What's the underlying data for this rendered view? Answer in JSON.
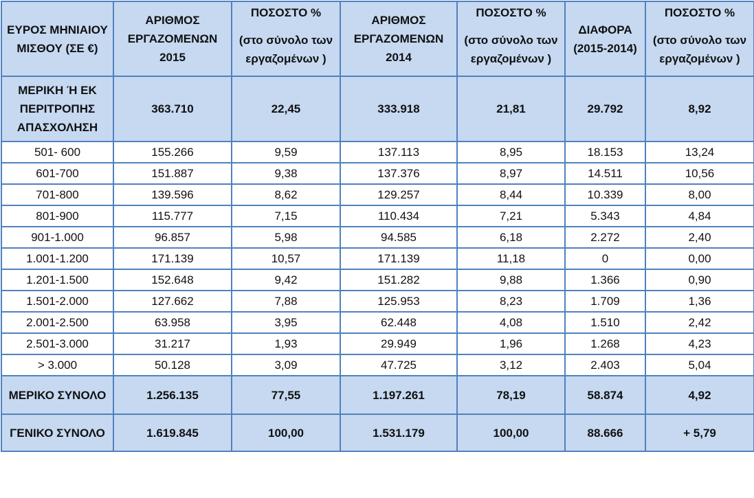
{
  "table": {
    "columns": [
      {
        "label": "ΕΥΡΟΣ ΜΗΝΙΑΙΟΥ ΜΙΣΘΟΥ (ΣΕ €)"
      },
      {
        "label": "ΑΡΙΘΜΟΣ ΕΡΓΑΖΟΜΕΝΩΝ 2015"
      },
      {
        "label": "ΠΟΣΟΣΤΟ %",
        "note": "(στο σύνολο των εργαζομένων )"
      },
      {
        "label": "ΑΡΙΘΜΟΣ ΕΡΓΑΖΟΜΕΝΩΝ 2014"
      },
      {
        "label": "ΠΟΣΟΣΤΟ %",
        "note": "(στο σύνολο των εργαζομένων )"
      },
      {
        "label": "ΔΙΑΦΟΡΑ (2015-2014)"
      },
      {
        "label": "ΠΟΣΟΣΤΟ %",
        "note": "(στο σύνολο των εργαζομένων )"
      }
    ],
    "rows": [
      [
        "ΜΕΡΙΚΗ Ή ΕΚ ΠΕΡΙΤΡΟΠΗΣ ΑΠΑΣΧΟΛΗΣΗ",
        "363.710",
        "22,45",
        "333.918",
        "21,81",
        "29.792",
        "8,92"
      ],
      [
        "501- 600",
        "155.266",
        "9,59",
        "137.113",
        "8,95",
        "18.153",
        "13,24"
      ],
      [
        "601-700",
        "151.887",
        "9,38",
        "137.376",
        "8,97",
        "14.511",
        "10,56"
      ],
      [
        "701-800",
        "139.596",
        "8,62",
        "129.257",
        "8,44",
        "10.339",
        "8,00"
      ],
      [
        "801-900",
        "115.777",
        "7,15",
        "110.434",
        "7,21",
        "5.343",
        "4,84"
      ],
      [
        "901-1.000",
        "96.857",
        "5,98",
        "94.585",
        "6,18",
        "2.272",
        "2,40"
      ],
      [
        "1.001-1.200",
        "171.139",
        "10,57",
        "171.139",
        "11,18",
        "0",
        "0,00"
      ],
      [
        "1.201-1.500",
        "152.648",
        "9,42",
        "151.282",
        "9,88",
        "1.366",
        "0,90"
      ],
      [
        "1.501-2.000",
        "127.662",
        "7,88",
        "125.953",
        "8,23",
        "1.709",
        "1,36"
      ],
      [
        "2.001-2.500",
        "63.958",
        "3,95",
        "62.448",
        "4,08",
        "1.510",
        "2,42"
      ],
      [
        "2.501-3.000",
        "31.217",
        "1,93",
        "29.949",
        "1,96",
        "1.268",
        "4,23"
      ],
      [
        "> 3.000",
        "50.128",
        "3,09",
        "47.725",
        "3,12",
        "2.403",
        "5,04"
      ],
      [
        "ΜΕΡΙΚΟ ΣΥΝΟΛΟ",
        "1.256.135",
        "77,55",
        "1.197.261",
        "78,19",
        "58.874",
        "4,92"
      ],
      [
        "ΓΕΝΙΚΟ ΣΥΝΟΛΟ",
        "1.619.845",
        "100,00",
        "1.531.179",
        "100,00",
        "88.666",
        "+ 5,79"
      ]
    ]
  }
}
